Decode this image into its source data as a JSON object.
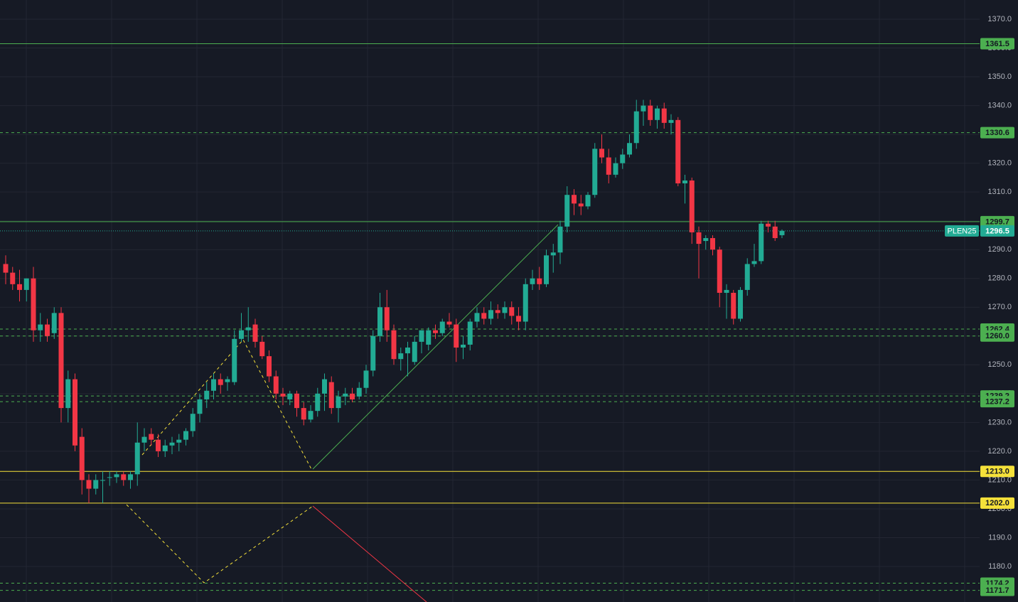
{
  "chart_data": {
    "type": "candlestick",
    "up_color": "#22ab94",
    "down_color": "#f23645",
    "ylim": [
      1167.66,
      1376.66
    ],
    "yticks": [
      {
        "value": 1180,
        "label": "1180.0"
      },
      {
        "value": 1190,
        "label": "1190.0"
      },
      {
        "value": 1200,
        "label": "1200.0"
      },
      {
        "value": 1210,
        "label": "1210.0"
      },
      {
        "value": 1220,
        "label": "1220.0"
      },
      {
        "value": 1230,
        "label": "1230.0"
      },
      {
        "value": 1240,
        "label": "1240.0"
      },
      {
        "value": 1250,
        "label": "1250.0"
      },
      {
        "value": 1260,
        "label": "1260.0"
      },
      {
        "value": 1270,
        "label": "1270.0"
      },
      {
        "value": 1280,
        "label": "1280.0"
      },
      {
        "value": 1290,
        "label": "1290.0"
      },
      {
        "value": 1300,
        "label": "1300.0"
      },
      {
        "value": 1310,
        "label": "1310.0"
      },
      {
        "value": 1320,
        "label": "1320.0"
      },
      {
        "value": 1330,
        "label": "1330.0"
      },
      {
        "value": 1340,
        "label": "1340.0"
      },
      {
        "value": 1350,
        "label": "1350.0"
      },
      {
        "value": 1360,
        "label": "1360.0"
      },
      {
        "value": 1370,
        "label": "1370.0"
      }
    ],
    "grid": true,
    "open": [
      1285,
      1282,
      1278,
      1276,
      1280,
      1262,
      1264,
      1261,
      1268,
      1235,
      1245,
      1225,
      1210,
      1207,
      1210,
      1211,
      1211,
      1212,
      1210,
      1212,
      1223,
      1226,
      1224,
      1220,
      1222,
      1223,
      1224,
      1227,
      1233,
      1238,
      1241,
      1245,
      1244,
      1244,
      1259,
      1262,
      1264,
      1258,
      1253,
      1246,
      1240,
      1238,
      1240,
      1235,
      1231,
      1234,
      1240,
      1244,
      1235,
      1239,
      1240,
      1239,
      1242,
      1248,
      1260,
      1270,
      1262,
      1252,
      1254,
      1251,
      1258,
      1257,
      1262,
      1261,
      1265,
      1264,
      1256,
      1257,
      1265,
      1268,
      1266,
      1269,
      1268,
      1270,
      1267,
      1265,
      1278,
      1280,
      1278,
      1288,
      1289,
      1298,
      1309,
      1306,
      1305,
      1309,
      1325,
      1322,
      1316,
      1320,
      1323,
      1327,
      1338,
      1340,
      1335,
      1339,
      1334,
      1335,
      1313,
      1314,
      1296,
      1293,
      1294,
      1290,
      1275,
      1275,
      1266,
      1276,
      1285,
      1286,
      1299,
      1298,
      1295
    ],
    "high": [
      1288,
      1284,
      1283,
      1280,
      1284,
      1268,
      1266,
      1270,
      1270,
      1248,
      1247,
      1228,
      1212,
      1212,
      1213,
      1213,
      1213,
      1213,
      1213,
      1230,
      1228,
      1228,
      1226,
      1224,
      1225,
      1226,
      1228,
      1235,
      1240,
      1244,
      1247,
      1247,
      1246,
      1262,
      1268,
      1270,
      1266,
      1260,
      1255,
      1248,
      1242,
      1241,
      1241,
      1237,
      1236,
      1242,
      1247,
      1246,
      1241,
      1242,
      1242,
      1244,
      1250,
      1262,
      1275,
      1276,
      1264,
      1256,
      1258,
      1260,
      1262,
      1263,
      1264,
      1266,
      1268,
      1266,
      1260,
      1266,
      1270,
      1270,
      1272,
      1271,
      1272,
      1272,
      1270,
      1280,
      1283,
      1284,
      1290,
      1292,
      1300,
      1312,
      1311,
      1309,
      1310,
      1327,
      1330,
      1325,
      1322,
      1325,
      1330,
      1342,
      1342,
      1342,
      1340,
      1341,
      1337,
      1336,
      1316,
      1315,
      1298,
      1295,
      1295,
      1291,
      1278,
      1276,
      1277,
      1287,
      1292,
      1300,
      1300,
      1300,
      1297
    ],
    "low": [
      1278,
      1276,
      1272,
      1272,
      1258,
      1258,
      1258,
      1259,
      1230,
      1230,
      1220,
      1205,
      1202,
      1205,
      1202,
      1208,
      1209,
      1208,
      1207,
      1208,
      1220,
      1222,
      1218,
      1218,
      1219,
      1220,
      1222,
      1225,
      1230,
      1235,
      1238,
      1240,
      1241,
      1243,
      1258,
      1258,
      1256,
      1252,
      1244,
      1238,
      1236,
      1236,
      1232,
      1229,
      1230,
      1232,
      1234,
      1233,
      1230,
      1236,
      1237,
      1238,
      1240,
      1246,
      1258,
      1258,
      1250,
      1248,
      1246,
      1250,
      1254,
      1255,
      1259,
      1260,
      1263,
      1251,
      1252,
      1255,
      1263,
      1264,
      1264,
      1266,
      1266,
      1264,
      1262,
      1262,
      1276,
      1276,
      1277,
      1282,
      1285,
      1296,
      1302,
      1302,
      1304,
      1308,
      1320,
      1313,
      1315,
      1318,
      1322,
      1325,
      1333,
      1333,
      1332,
      1332,
      1330,
      1312,
      1306,
      1292,
      1280,
      1290,
      1288,
      1270,
      1266,
      1264,
      1265,
      1274,
      1284,
      1285,
      1296,
      1293,
      1294
    ],
    "close": [
      1282,
      1278,
      1276,
      1280,
      1262,
      1264,
      1260,
      1268,
      1235,
      1245,
      1222,
      1210,
      1207,
      1210,
      1210,
      1211,
      1212,
      1210,
      1212,
      1223,
      1225,
      1224,
      1220,
      1222,
      1223,
      1224,
      1227,
      1233,
      1238,
      1241,
      1245,
      1243,
      1245,
      1259,
      1262,
      1263,
      1258,
      1253,
      1246,
      1240,
      1239,
      1240,
      1235,
      1231,
      1234,
      1240,
      1245,
      1235,
      1239,
      1240,
      1238,
      1242,
      1248,
      1260,
      1270,
      1262,
      1252,
      1254,
      1256,
      1258,
      1262,
      1262,
      1261,
      1265,
      1264,
      1256,
      1257,
      1265,
      1268,
      1266,
      1269,
      1268,
      1270,
      1267,
      1265,
      1278,
      1280,
      1278,
      1288,
      1289,
      1298,
      1309,
      1306,
      1305,
      1309,
      1325,
      1322,
      1316,
      1320,
      1323,
      1327,
      1338,
      1340,
      1335,
      1339,
      1334,
      1335,
      1313,
      1314,
      1296,
      1292,
      1294,
      1290,
      1275,
      1276,
      1266,
      1276,
      1285,
      1286,
      1299,
      1298,
      1294,
      1296.5
    ],
    "levels": [
      {
        "value": 1361.5,
        "label": "1361.5",
        "color": "#4caf50",
        "style": "solid"
      },
      {
        "value": 1330.6,
        "label": "1330.6",
        "color": "#4caf50",
        "style": "dashed"
      },
      {
        "value": 1299.7,
        "label": "1299.7",
        "color": "#4caf50",
        "style": "solid"
      },
      {
        "value": 1262.4,
        "label": "1262.4",
        "color": "#4caf50",
        "style": "dashed"
      },
      {
        "value": 1260,
        "label": "1260.0",
        "color": "#4caf50",
        "style": "dashed"
      },
      {
        "value": 1239.2,
        "label": "1239.2",
        "color": "#4caf50",
        "style": "dashed"
      },
      {
        "value": 1237.2,
        "label": "1237.2",
        "color": "#4caf50",
        "style": "dashed"
      },
      {
        "value": 1213,
        "label": "1213.0",
        "color": "#f5e13a",
        "style": "solid"
      },
      {
        "value": 1202,
        "label": "1202.0",
        "color": "#f5e13a",
        "style": "solid"
      },
      {
        "value": 1174.2,
        "label": "1174.2",
        "color": "#4caf50",
        "style": "dashed"
      },
      {
        "value": 1171.7,
        "label": "1171.7",
        "color": "#4caf50",
        "style": "dashed"
      }
    ],
    "last_price": 1296.5,
    "symbol_label": "PLEN25",
    "last_color": "#22ab94"
  }
}
